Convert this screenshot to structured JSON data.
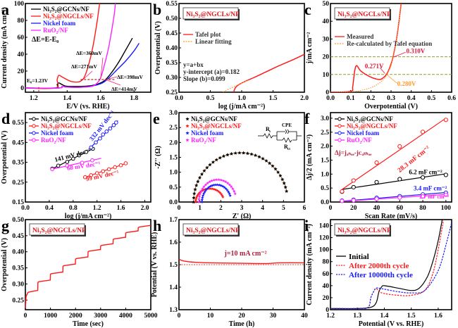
{
  "figure": {
    "colors": {
      "black": "#000000",
      "red": "#ff1a1a",
      "blue": "#1a1aff",
      "magenta": "#ff22ff",
      "orange": "#ff9a2a",
      "olive": "#9a9a33",
      "darkred": "#b0203a",
      "brown": "#c0741f"
    },
    "sample_box": "Ni3S2@NGCLs/NF"
  },
  "chart_data": [
    {
      "id": "a",
      "panel_label": "a",
      "type": "line",
      "xlabel": "E/V (vs. RHE)",
      "ylabel": "Current density (mA cm⁻²)",
      "xlim": [
        1.15,
        1.9
      ],
      "ylim": [
        -5,
        100
      ],
      "xticks": [
        "1.2",
        "1.4",
        "1.6",
        "1.8"
      ],
      "xtick_values": [
        1.2,
        1.4,
        1.6,
        1.8
      ],
      "yticks": [
        "0",
        "20",
        "40",
        "60",
        "80",
        "100"
      ],
      "ytick_values": [
        0,
        20,
        40,
        60,
        80,
        100
      ],
      "legend": [
        "Ni₃S₂@GCNs/NF",
        "Ni₃S₂@NGCLs/NF",
        "Nickel foam",
        "RuO₂/NF"
      ],
      "series": [
        {
          "name": "Ni3S2@GCNs/NF",
          "color": "black",
          "x": [
            1.15,
            1.33,
            1.34,
            1.35,
            1.37,
            1.4,
            1.5,
            1.55,
            1.6,
            1.64,
            1.7,
            1.75,
            1.79
          ],
          "y": [
            0,
            0,
            4,
            6,
            4,
            2,
            2,
            3,
            6,
            12,
            28,
            45,
            59
          ]
        },
        {
          "name": "Ni3S2@NGCLs/NF",
          "color": "red",
          "x": [
            1.15,
            1.33,
            1.34,
            1.35,
            1.37,
            1.42,
            1.46,
            1.48,
            1.5,
            1.52,
            1.55,
            1.58,
            1.6
          ],
          "y": [
            0,
            0,
            10,
            15,
            13,
            8,
            7,
            8,
            12,
            22,
            45,
            80,
            110
          ]
        },
        {
          "name": "Nickel foam",
          "color": "blue",
          "x": [
            1.15,
            1.35,
            1.37,
            1.4,
            1.5,
            1.6,
            1.65,
            1.7,
            1.75,
            1.8,
            1.83
          ],
          "y": [
            0,
            0,
            2,
            1,
            1,
            5,
            12,
            22,
            32,
            44,
            53
          ]
        },
        {
          "name": "RuO2/NF",
          "color": "magenta",
          "x": [
            1.15,
            1.35,
            1.37,
            1.4,
            1.5,
            1.55,
            1.58,
            1.6,
            1.62,
            1.65,
            1.68,
            1.69
          ],
          "y": [
            0,
            0,
            2,
            1,
            1,
            2,
            6,
            12,
            25,
            50,
            85,
            105
          ]
        }
      ],
      "annotations": [
        "ΔE=E-E₀",
        "ΔE=360mV",
        "ΔE=271mV",
        "ΔE=398mV",
        "ΔE=414mV",
        "E₀=1.23V"
      ],
      "reference_level": 10,
      "e0": 1.23
    },
    {
      "id": "b",
      "panel_label": "b",
      "type": "line",
      "xlabel": "log (j/mA cm⁻²)",
      "ylabel": "Overpotential (V)",
      "xlim": [
        0,
        2.0
      ],
      "ylim": [
        0.25,
        0.55
      ],
      "xticks": [
        "0.0",
        "0.5",
        "1.0",
        "1.5",
        "2.0"
      ],
      "xtick_values": [
        0,
        0.5,
        1,
        1.5,
        2
      ],
      "yticks": [
        "0.25",
        "0.30",
        "0.35",
        "0.40",
        "0.45",
        "0.50",
        "0.55"
      ],
      "ytick_values": [
        0.25,
        0.3,
        0.35,
        0.4,
        0.45,
        0.5,
        0.55
      ],
      "legend": [
        "Tafel plot",
        "Linear fitting"
      ],
      "series": [
        {
          "name": "Tafel plot",
          "color": "red",
          "x": [
            0.87,
            0.9,
            0.95,
            1.0,
            1.1,
            1.2,
            1.4,
            1.6,
            1.8,
            2.0
          ],
          "y": [
            0.25,
            0.265,
            0.275,
            0.281,
            0.291,
            0.3,
            0.32,
            0.34,
            0.358,
            0.378
          ]
        },
        {
          "name": "Linear fitting",
          "color": "orange",
          "dash": true,
          "x": [
            0.7,
            1.1
          ],
          "y": [
            0.251,
            0.291
          ]
        }
      ],
      "annotations": [
        "y=a+bx",
        "y-intercept (a)=0.182",
        "Slope (b)=0.099"
      ]
    },
    {
      "id": "c",
      "panel_label": "c",
      "type": "line",
      "xlabel": "Overpotential (V)",
      "ylabel": "j/mA cm⁻²",
      "xlim": [
        0,
        0.6
      ],
      "ylim": [
        0,
        50
      ],
      "xticks": [
        "0.0",
        "0.1",
        "0.2",
        "0.3",
        "0.4",
        "0.5",
        "0.6"
      ],
      "xtick_values": [
        0,
        0.1,
        0.2,
        0.3,
        0.4,
        0.5,
        0.6
      ],
      "yticks": [
        "0",
        "10",
        "20",
        "30",
        "40",
        "50"
      ],
      "ytick_values": [
        0,
        10,
        20,
        30,
        40,
        50
      ],
      "legend": [
        "Measured",
        "Re-calculated by Tafel equation"
      ],
      "series": [
        {
          "name": "Measured",
          "color": "red",
          "x": [
            0,
            0.1,
            0.11,
            0.12,
            0.13,
            0.15,
            0.2,
            0.24,
            0.26,
            0.28,
            0.3,
            0.31,
            0.33,
            0.35
          ],
          "y": [
            0,
            0.5,
            3,
            12,
            15,
            12,
            8.5,
            7.2,
            8,
            10.5,
            16,
            20,
            32,
            50
          ]
        },
        {
          "name": "Re-calculated by Tafel equation",
          "color": "orange",
          "dash": true,
          "x": [
            0,
            0.1,
            0.15,
            0.2,
            0.24,
            0.27,
            0.28,
            0.3,
            0.31,
            0.33,
            0.35
          ],
          "y": [
            0,
            0.2,
            1,
            2.5,
            5,
            8,
            10,
            15,
            20,
            32,
            50
          ]
        }
      ],
      "hlines": [
        10,
        20
      ],
      "annotations": [
        "0.310V",
        "0.271V",
        "0.280V"
      ]
    },
    {
      "id": "d",
      "panel_label": "d",
      "type": "scatter",
      "xlabel": "log (j/mA cm⁻²)",
      "ylabel": "Overpotential (V)",
      "xlim": [
        0,
        2.1
      ],
      "ylim": [
        0.15,
        0.6
      ],
      "xticks": [
        "0.0",
        "0.4",
        "0.8",
        "1.2",
        "1.6",
        "2.0"
      ],
      "xtick_values": [
        0,
        0.4,
        0.8,
        1.2,
        1.6,
        2.0
      ],
      "yticks": [
        "0.15",
        "0.25",
        "0.35",
        "0.45",
        "0.55"
      ],
      "ytick_values": [
        0.15,
        0.25,
        0.35,
        0.45,
        0.55
      ],
      "legend": [
        "Ni₃S₂@GCNs/NF",
        "Ni₃S₂@NGCLs/NF",
        "Nickel foam",
        "RuO₂/NF"
      ],
      "series": [
        {
          "name": "Ni3S2@GCNs/NF",
          "color": "black",
          "x": [
            0.45,
            0.55,
            0.7,
            0.8,
            0.9,
            1.02,
            1.13
          ],
          "y": [
            0.318,
            0.333,
            0.352,
            0.368,
            0.385,
            0.402,
            0.418
          ],
          "slope_label": "141 mV dec⁻¹"
        },
        {
          "name": "Ni3S2@NGCLs/NF",
          "color": "red",
          "x": [
            1.0,
            1.1,
            1.2,
            1.3,
            1.4,
            1.5,
            1.6,
            1.68
          ],
          "y": [
            0.275,
            0.285,
            0.295,
            0.305,
            0.315,
            0.325,
            0.335,
            0.345
          ],
          "slope_label": "99 mV dec⁻¹"
        },
        {
          "name": "Nickel foam",
          "color": "blue",
          "x": [
            1.1,
            1.18,
            1.25,
            1.3,
            1.36,
            1.42,
            1.48,
            1.52
          ],
          "y": [
            0.425,
            0.45,
            0.47,
            0.49,
            0.505,
            0.52,
            0.537,
            0.55
          ],
          "slope_label": "332 mV dec⁻¹"
        },
        {
          "name": "RuO2/NF",
          "color": "magenta",
          "x": [
            0.45,
            0.7,
            0.95,
            1.12
          ],
          "y": [
            0.315,
            0.333,
            0.348,
            0.36
          ],
          "slope_label": "68 mV dec⁻¹"
        }
      ]
    },
    {
      "id": "e",
      "panel_label": "e",
      "type": "scatter",
      "xlabel": "Z' (Ω)",
      "ylabel": "-Z'' (Ω)",
      "xlim": [
        0,
        6
      ],
      "ylim": [
        0,
        3.0
      ],
      "xticks": [
        "0",
        "1",
        "2",
        "3",
        "4",
        "5",
        "6"
      ],
      "xtick_values": [
        0,
        1,
        2,
        3,
        4,
        5,
        6
      ],
      "yticks": [
        "0.0",
        "0.5",
        "1.0",
        "1.5",
        "2.0",
        "2.5",
        "3.0"
      ],
      "ytick_values": [
        0,
        0.5,
        1,
        1.5,
        2,
        2.5,
        3
      ],
      "legend": [
        "Ni₃S₂@GCNs/NF",
        "Ni₃S₂@NGCLs/NF",
        "Nickel foam",
        "RuO₂/NF"
      ],
      "series": [
        {
          "name": "Ni3S2@GCNs/NF",
          "color": "black",
          "rs": 0.7,
          "rct_end": 5.2,
          "peak": 1.65
        },
        {
          "name": "Ni3S2@NGCLs/NF",
          "color": "red",
          "rs": 0.8,
          "rct_end": 2.15,
          "peak": 0.45
        },
        {
          "name": "Nickel foam",
          "color": "blue",
          "rs": 1.1,
          "rct_end": 2.5,
          "peak": 0.58
        },
        {
          "name": "RuO2/NF",
          "color": "magenta",
          "rs": 0.95,
          "rct_end": 2.75,
          "peak": 0.75
        }
      ],
      "circuit": {
        "rs": "Rₛ",
        "cpe": "CPE",
        "rct": "Rᴄₜ"
      }
    },
    {
      "id": "f",
      "panel_label": "f",
      "type": "scatter",
      "xlabel": "Scan Rate (mV/s)",
      "ylabel": "Δj/2 (mA cm⁻²)",
      "xlim": [
        0,
        105
      ],
      "ylim": [
        0,
        3.2
      ],
      "xticks": [
        "0",
        "20",
        "40",
        "60",
        "80",
        "100"
      ],
      "xtick_values": [
        0,
        20,
        40,
        60,
        80,
        100
      ],
      "yticks": [
        "0.0",
        "0.5",
        "1.0",
        "1.5",
        "2.0",
        "2.5",
        "3.0"
      ],
      "ytick_values": [
        0,
        0.5,
        1,
        1.5,
        2,
        2.5,
        3
      ],
      "legend": [
        "Ni₃S₂@GCNs/NF",
        "Ni₃S₂@NGCLs/NF",
        "Nickel foam",
        "RuO₂/NF"
      ],
      "series": [
        {
          "name": "Ni3S2@GCNs/NF",
          "color": "black",
          "x": [
            10,
            20,
            40,
            60,
            80,
            100
          ],
          "y": [
            0.37,
            0.53,
            0.71,
            0.82,
            0.88,
            0.97
          ],
          "fit": [
            0.45,
            1.01
          ],
          "label": "6.2 mF cm⁻²"
        },
        {
          "name": "Ni3S2@NGCLs/NF",
          "color": "red",
          "x": [
            10,
            20,
            40,
            60,
            80,
            100
          ],
          "y": [
            0.38,
            0.77,
            1.41,
            1.99,
            2.51,
            2.94
          ],
          "fit": [
            0.45,
            3.0
          ],
          "label": "28.3 mF cm⁻²"
        },
        {
          "name": "Nickel foam",
          "color": "blue",
          "x": [
            10,
            20,
            40,
            60,
            80,
            100
          ],
          "y": [
            0.05,
            0.08,
            0.15,
            0.21,
            0.27,
            0.33
          ],
          "fit": [
            0.03,
            0.34
          ],
          "label": "3.4 mF cm⁻²"
        },
        {
          "name": "RuO2/NF",
          "color": "magenta",
          "x": [
            10,
            20,
            40,
            60,
            80,
            100
          ],
          "y": [
            0.04,
            0.06,
            0.11,
            0.16,
            0.2,
            0.26
          ],
          "fit": [
            0.02,
            0.27
          ],
          "label": "2.7 mF cm⁻²"
        }
      ],
      "annotations": [
        "Δj=jₐₙₒₑ-jᴄₐₜₕₒₑ"
      ]
    },
    {
      "id": "g",
      "panel_label": "g",
      "type": "line",
      "xlabel": "Time (sec)",
      "ylabel": "Overpotential (V)",
      "xlim": [
        0,
        5000
      ],
      "ylim": [
        0.22,
        0.5
      ],
      "xticks": [
        "0",
        "1000",
        "2000",
        "3000",
        "4000",
        "5000"
      ],
      "xtick_values": [
        0,
        1000,
        2000,
        3000,
        4000,
        5000
      ],
      "yticks": [
        "0.25",
        "0.30",
        "0.35",
        "0.40",
        "0.45",
        "0.50"
      ],
      "ytick_values": [
        0.25,
        0.3,
        0.35,
        0.4,
        0.45,
        0.5
      ],
      "series": [
        {
          "name": "Ni3S2@NGCLs/NF",
          "color": "red",
          "steps_start": [
            0,
            500,
            1000,
            1500,
            2000,
            2500,
            3000,
            3500,
            4000,
            4500
          ],
          "steps_level": [
            0.278,
            0.31,
            0.335,
            0.36,
            0.382,
            0.405,
            0.423,
            0.443,
            0.463,
            0.48
          ]
        }
      ]
    },
    {
      "id": "h",
      "panel_label": "h",
      "type": "line",
      "xlabel": "Time (h)",
      "ylabel": "Potential (V vs. RHE)",
      "xlim": [
        0,
        40
      ],
      "ylim": [
        1.3,
        1.7
      ],
      "xticks": [
        "0",
        "10",
        "20",
        "30",
        "40"
      ],
      "xtick_values": [
        0,
        10,
        20,
        30,
        40
      ],
      "yticks": [
        "1.3",
        "1.4",
        "1.5",
        "1.6",
        "1.7"
      ],
      "ytick_values": [
        1.3,
        1.4,
        1.5,
        1.6,
        1.7
      ],
      "series": [
        {
          "name": "Ni3S2@NGCLs/NF",
          "color": "red",
          "x": [
            0,
            1,
            3,
            6,
            10,
            20,
            28,
            32,
            40
          ],
          "y": [
            1.525,
            1.518,
            1.513,
            1.51,
            1.508,
            1.506,
            1.505,
            1.508,
            1.508
          ]
        }
      ],
      "hlines": [
        1.5
      ],
      "annotations": [
        "j=10 mA cm⁻²"
      ]
    },
    {
      "id": "i",
      "panel_label": "i",
      "type": "line",
      "xlabel": "Potential (V vs. RHE)",
      "ylabel": "Current density (mA cm⁻²)",
      "xlim": [
        1.2,
        1.65
      ],
      "ylim": [
        0,
        150
      ],
      "xticks": [
        "1.2",
        "1.3",
        "1.4",
        "1.5",
        "1.6"
      ],
      "xtick_values": [
        1.2,
        1.3,
        1.4,
        1.5,
        1.6
      ],
      "yticks": [
        "0",
        "20",
        "40",
        "60",
        "80",
        "100",
        "120",
        "140"
      ],
      "ytick_values": [
        0,
        20,
        40,
        60,
        80,
        100,
        120,
        140
      ],
      "legend": [
        "Initial",
        "After 2000th cycle",
        "After 10000th cycle"
      ],
      "series": [
        {
          "name": "Initial",
          "color": "black",
          "x": [
            1.2,
            1.3,
            1.35,
            1.37,
            1.38,
            1.39,
            1.4,
            1.45,
            1.5,
            1.53,
            1.56,
            1.58,
            1.6,
            1.615
          ],
          "y": [
            2,
            2,
            4,
            12,
            30,
            38,
            40,
            36,
            32,
            36,
            55,
            80,
            115,
            150
          ]
        },
        {
          "name": "After 2000th cycle",
          "color": "red",
          "dash": true,
          "x": [
            1.2,
            1.3,
            1.34,
            1.35,
            1.36,
            1.37,
            1.39,
            1.45,
            1.5,
            1.55,
            1.58,
            1.6,
            1.62
          ],
          "y": [
            2,
            2,
            4,
            20,
            30,
            35,
            28,
            24,
            24,
            32,
            60,
            100,
            150
          ]
        },
        {
          "name": "After 10000th cycle",
          "color": "blue",
          "dash": true,
          "x": [
            1.2,
            1.3,
            1.34,
            1.35,
            1.36,
            1.37,
            1.39,
            1.45,
            1.5,
            1.55,
            1.6,
            1.63,
            1.65
          ],
          "y": [
            2,
            2,
            4,
            20,
            30,
            36,
            35,
            30,
            28,
            32,
            65,
            110,
            145
          ]
        }
      ]
    }
  ]
}
